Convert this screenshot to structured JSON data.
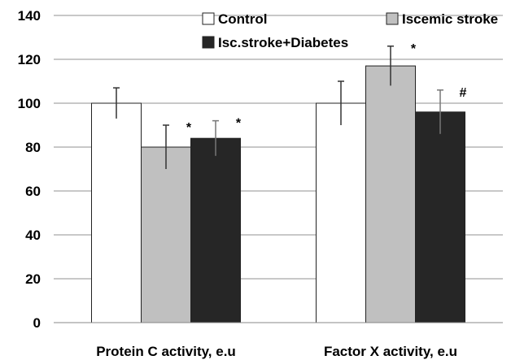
{
  "chart_data": {
    "type": "bar",
    "categories": [
      "Protein C activity, e.u",
      "Factor X activity, e.u"
    ],
    "series": [
      {
        "name": "Control",
        "values": [
          100,
          100
        ],
        "errors": [
          7,
          10
        ],
        "color": "#ffffff",
        "annotations": [
          "",
          ""
        ]
      },
      {
        "name": "Iscemic stroke",
        "values": [
          80,
          117
        ],
        "errors": [
          10,
          9
        ],
        "color": "#c0c0c0",
        "annotations": [
          "*",
          "*"
        ]
      },
      {
        "name": "Isc.stroke+Diabetes",
        "values": [
          84,
          96
        ],
        "errors": [
          8,
          10
        ],
        "color": "#262626",
        "annotations": [
          "*",
          "#"
        ]
      }
    ],
    "ylim": [
      0,
      140
    ],
    "yticks": [
      "0",
      "20",
      "40",
      "60",
      "80",
      "100",
      "120",
      "140"
    ],
    "grid": true,
    "legend": "top"
  }
}
